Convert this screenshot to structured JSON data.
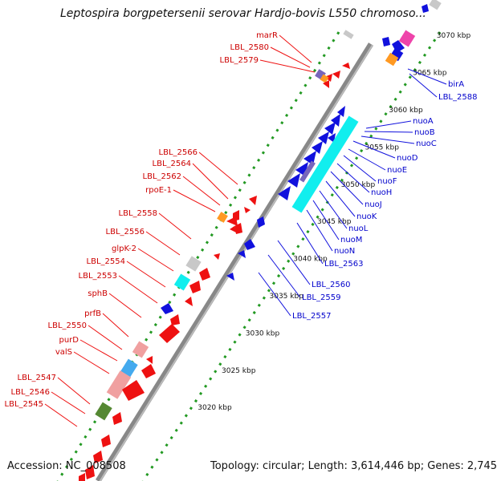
{
  "header": {
    "title": "Leptospira borgpetersenii serovar Hardjo-bovis L550 chromoso..."
  },
  "footer": {
    "accession": "Accession: NC_008508",
    "summary": "Topology: circular; Length: 3,614,446 bp; Genes: 2,745"
  },
  "colors": {
    "forward_gene": "#ee1111",
    "reverse_gene": "#1111dd",
    "backbone": "#888888",
    "tick_dots": "#229922",
    "cyan_feature": "#11eeee",
    "orange_feature": "#ff9922",
    "magenta_feature": "#ee44aa",
    "gray_feature": "#c8c8c8",
    "pink_feature": "#f0a0a0",
    "sky_feature": "#44aaee",
    "olive_feature": "#558833",
    "purple_feature": "#7766bb"
  },
  "scale_labels": [
    {
      "label": "3070 kbp",
      "pos": 0.035
    },
    {
      "label": "3065 kbp",
      "pos": 0.12
    },
    {
      "label": "3060 kbp",
      "pos": 0.205
    },
    {
      "label": "3055 kbp",
      "pos": 0.29
    },
    {
      "label": "3050 kbp",
      "pos": 0.375
    },
    {
      "label": "3045 kbp",
      "pos": 0.46
    },
    {
      "label": "3040 kbp",
      "pos": 0.545
    },
    {
      "label": "3035 kbp",
      "pos": 0.63
    },
    {
      "label": "3030 kbp",
      "pos": 0.715
    },
    {
      "label": "3025 kbp",
      "pos": 0.8
    },
    {
      "label": "3020 kbp",
      "pos": 0.885
    }
  ],
  "left_labels": [
    "marR",
    "LBL_2580",
    "LBL_2579",
    "LBL_2566",
    "LBL_2564",
    "LBL_2562",
    "rpoE-1",
    "LBL_2558",
    "LBL_2556",
    "glpK-2",
    "LBL_2554",
    "LBL_2553",
    "sphB",
    "prfB",
    "LBL_2550",
    "purD",
    "valS",
    "LBL_2547",
    "LBL_2546",
    "LBL_2545"
  ],
  "right_labels": [
    "birA",
    "LBL_2588",
    "nuoA",
    "nuoB",
    "nuoC",
    "nuoD",
    "nuoE",
    "nuoF",
    "nuoH",
    "nuoJ",
    "nuoK",
    "nuoL",
    "nuoM",
    "nuoN",
    "LBL_2563",
    "LBL_2560",
    "LBL_2559",
    "LBL_2557"
  ]
}
